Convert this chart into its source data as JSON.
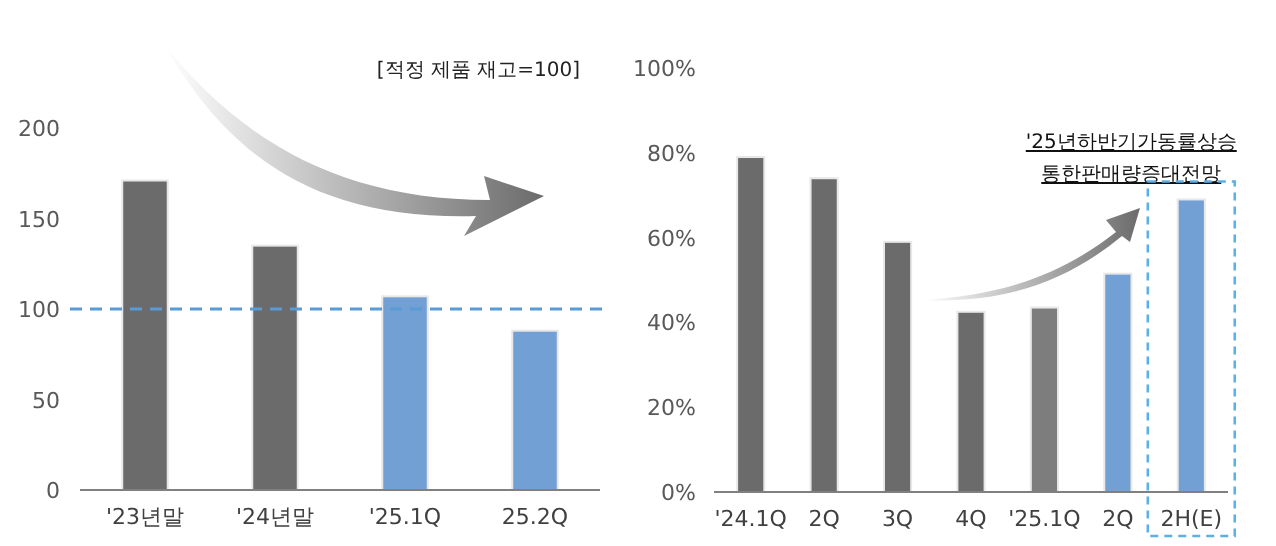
{
  "chart_data": [
    {
      "type": "bar",
      "categories": [
        "'23년말",
        "'24년말",
        "'25.1Q",
        "25.2Q"
      ],
      "values": [
        171,
        135,
        107,
        88
      ],
      "colors": [
        "#6b6b6b",
        "#6b6b6b",
        "#729fd4",
        "#729fd4"
      ],
      "ylim": [
        0,
        200
      ],
      "yticks": [
        0,
        50,
        100,
        150,
        200
      ],
      "ref_lines": [
        {
          "axis": "y",
          "value": 100,
          "color": "#5b9bd5",
          "line_style": "dashed"
        }
      ],
      "annotations": [
        "[적정 제품 재고=100]"
      ]
    },
    {
      "type": "bar",
      "categories": [
        "'24.1Q",
        "2Q",
        "3Q",
        "4Q",
        "'25.1Q",
        "2Q",
        "2H(E)"
      ],
      "values": [
        79,
        74,
        59,
        42.5,
        43.5,
        51.5,
        69
      ],
      "colors": [
        "#6b6b6b",
        "#6b6b6b",
        "#6b6b6b",
        "#6b6b6b",
        "#7d7d7d",
        "#729fd4",
        "#729fd4"
      ],
      "ylim": [
        0,
        100
      ],
      "yticks": [
        {
          "value": 0,
          "label": "0%"
        },
        {
          "value": 20,
          "label": "20%"
        },
        {
          "value": 40,
          "label": "40%"
        },
        {
          "value": 60,
          "label": "60%"
        },
        {
          "value": 80,
          "label": "80%"
        },
        {
          "value": 100,
          "label": "100%"
        }
      ],
      "annotations": [
        "'25년하반기가동률상승",
        "통한판매량증대전망"
      ]
    }
  ]
}
